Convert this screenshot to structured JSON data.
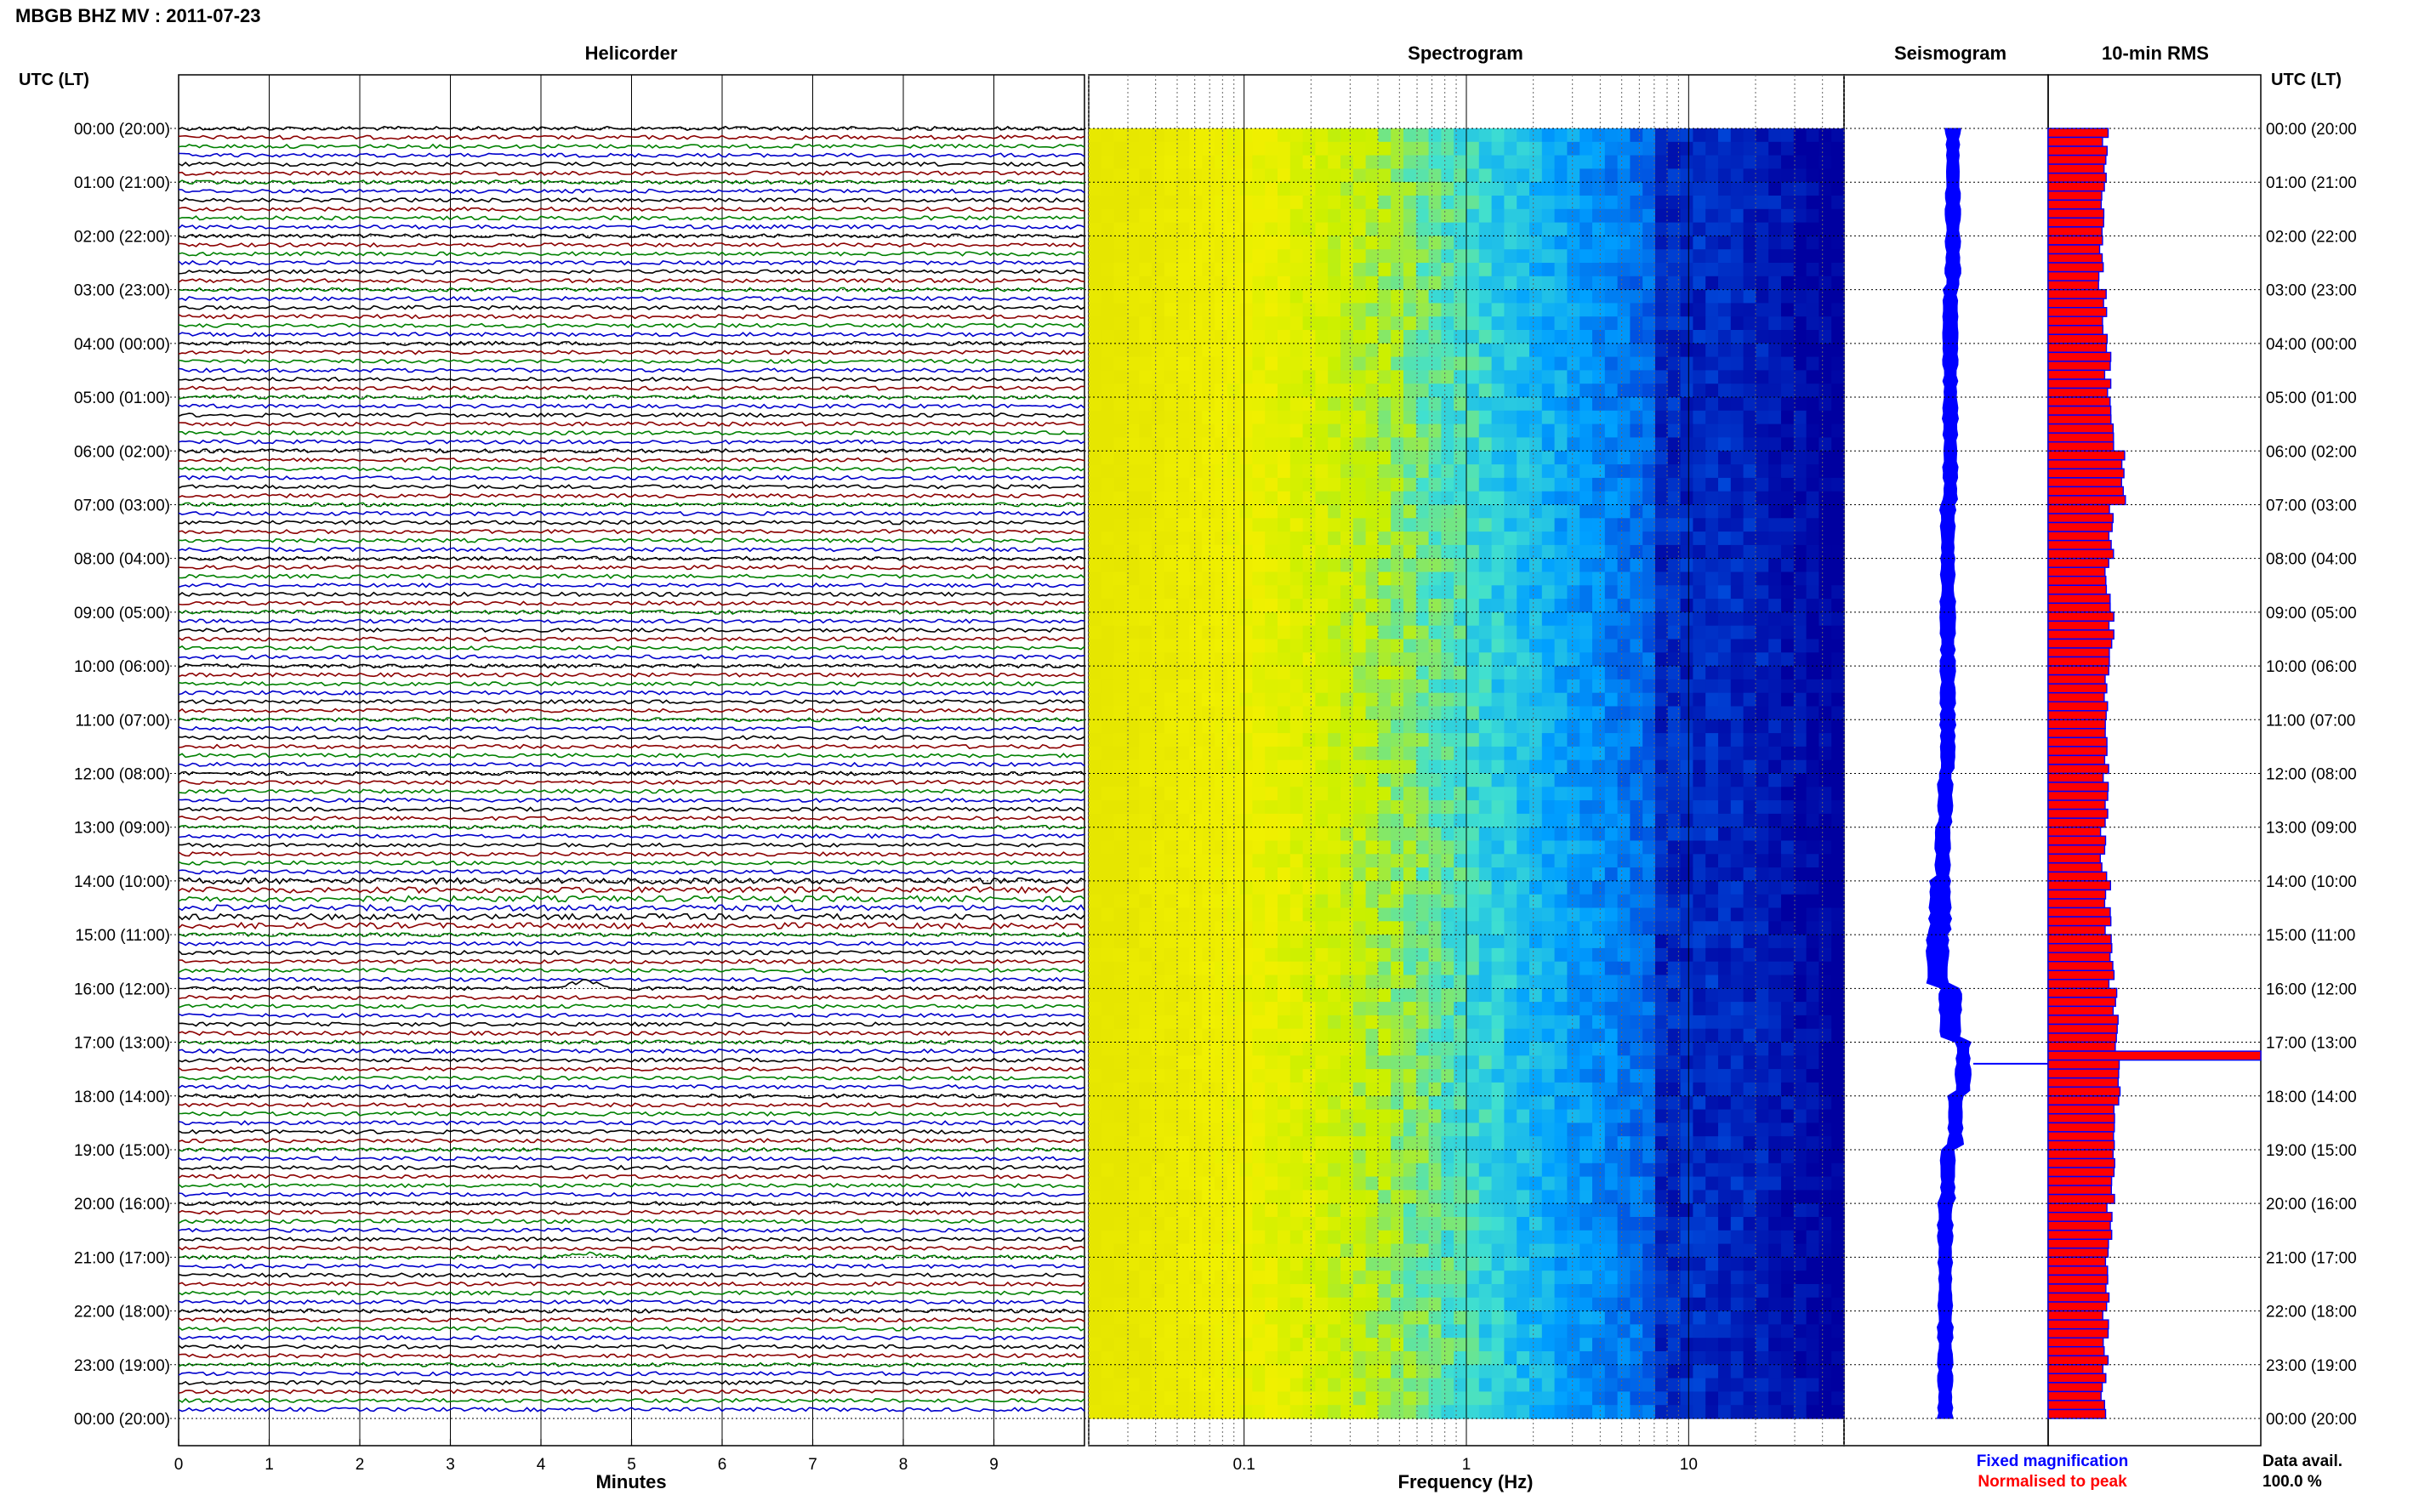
{
  "header": {
    "title": "MBGB BHZ MV : 2011-07-23",
    "left_axis_label": "UTC (LT)",
    "right_axis_label": "UTC (LT)"
  },
  "panels": {
    "helicorder": "Helicorder",
    "spectrogram": "Spectrogram",
    "seismogram": "Seismogram",
    "rms": "10-min RMS"
  },
  "legend": {
    "fixed": "Fixed magnification",
    "normalised": "Normalised to peak",
    "fixed_color": "#0000ff",
    "normalised_color": "#ff0000"
  },
  "data_availability": {
    "label": "Data avail.",
    "value": "100.0 %"
  },
  "time_labels": [
    "00:00 (20:00)",
    "01:00 (21:00)",
    "02:00 (22:00)",
    "03:00 (23:00)",
    "04:00 (00:00)",
    "05:00 (01:00)",
    "06:00 (02:00)",
    "07:00 (03:00)",
    "08:00 (04:00)",
    "09:00 (05:00)",
    "10:00 (06:00)",
    "11:00 (07:00)",
    "12:00 (08:00)",
    "13:00 (09:00)",
    "14:00 (10:00)",
    "15:00 (11:00)",
    "16:00 (12:00)",
    "17:00 (13:00)",
    "18:00 (14:00)",
    "19:00 (15:00)",
    "20:00 (16:00)",
    "21:00 (17:00)",
    "22:00 (18:00)",
    "23:00 (19:00)",
    "00:00 (20:00)"
  ],
  "chart_data": [
    {
      "type": "line",
      "panel": "helicorder",
      "xlabel": "Minutes",
      "xlim": [
        0,
        10
      ],
      "x_ticks": [
        "0",
        "1",
        "2",
        "3",
        "4",
        "5",
        "6",
        "7",
        "8",
        "9"
      ],
      "lines_per_hour": 6,
      "trace_colors": [
        "#000000",
        "#8b0000",
        "#008000",
        "#0000cc"
      ],
      "notable_events": [
        {
          "hour": 14,
          "minute_range": [
            0,
            10
          ],
          "note_level": "elevated"
        },
        {
          "hour": 16,
          "minute": 4.5,
          "note_level": "event"
        },
        {
          "hour": 21,
          "minute": 4.5,
          "note_level": "burst"
        }
      ]
    },
    {
      "type": "heatmap",
      "panel": "spectrogram",
      "xlabel": "Frequency (Hz)",
      "x_scale": "log",
      "xlim": [
        0.02,
        50
      ],
      "x_ticks": [
        "0.1",
        "1",
        "10"
      ],
      "colormap": [
        "#e6e600",
        "#f0f000",
        "#c8f000",
        "#40e0d0",
        "#00a0ff",
        "#0050e0",
        "#0000a0"
      ],
      "colormap_stops": [
        0.0,
        0.2,
        0.35,
        0.5,
        0.65,
        0.8,
        1.0
      ]
    },
    {
      "type": "line",
      "panel": "seismogram",
      "color": "#0000ff",
      "note": "",
      "center_offset_by_hour": [
        0.1,
        0.1,
        0.1,
        0.05,
        0.05,
        0.05,
        0.05,
        0.0,
        0.0,
        0.0,
        0.0,
        0.0,
        -0.05,
        -0.1,
        -0.15,
        -0.2,
        0.05,
        0.3,
        0.15,
        0.0,
        -0.05,
        -0.05,
        -0.05,
        -0.05
      ],
      "spike_hour": 17.4
    },
    {
      "type": "bar",
      "panel": "rms",
      "unit": "",
      "orientation": "horizontal",
      "bins_per_hour": 6,
      "series": [
        {
          "name": "Fixed magnification",
          "color": "#0000ff"
        },
        {
          "name": "Normalised to peak",
          "color": "#ff0000"
        }
      ],
      "hourly_values": [
        0.27,
        0.26,
        0.25,
        0.27,
        0.28,
        0.3,
        0.36,
        0.3,
        0.28,
        0.3,
        0.27,
        0.27,
        0.27,
        0.26,
        0.28,
        0.3,
        0.32,
        0.33,
        0.32,
        0.31,
        0.29,
        0.28,
        0.27,
        0.26
      ],
      "peak": {
        "hour": 17.2,
        "value": 1.0
      }
    }
  ]
}
